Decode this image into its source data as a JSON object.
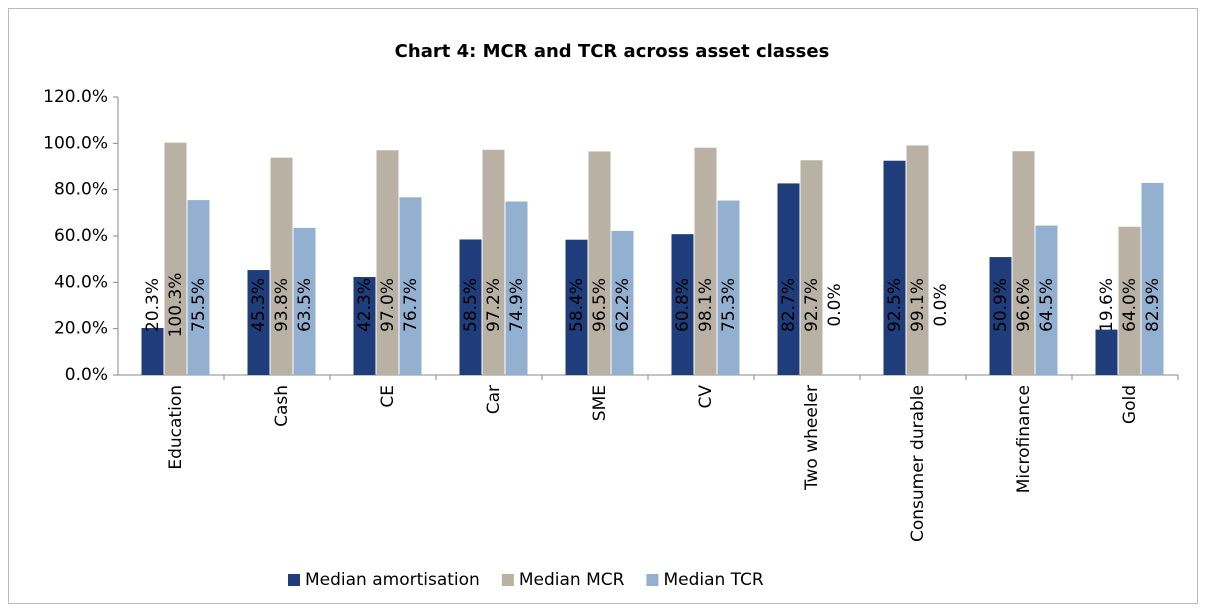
{
  "chart_data": {
    "type": "bar",
    "title": "Chart 4: MCR and TCR across asset classes",
    "categories": [
      "Education",
      "Cash",
      "CE",
      "Car",
      "SME",
      "CV",
      "Two wheeler",
      "Consumer durable",
      "Microfinance",
      "Gold"
    ],
    "series": [
      {
        "name": "Median amortisation",
        "color": "#1f3d7a",
        "values": [
          20.3,
          45.3,
          42.3,
          58.5,
          58.4,
          60.8,
          82.7,
          92.5,
          50.9,
          19.6
        ],
        "value_labels": [
          "20.3%",
          "45.3%",
          "42.3%",
          "58.5%",
          "58.4%",
          "60.8%",
          "82.7%",
          "92.5%",
          "50.9%",
          "19.6%"
        ]
      },
      {
        "name": "Median MCR",
        "color": "#b9b1a4",
        "values": [
          100.3,
          93.8,
          97.0,
          97.2,
          96.5,
          98.1,
          92.7,
          99.1,
          96.6,
          64.0
        ],
        "value_labels": [
          "100.3%",
          "93.8%",
          "97.0%",
          "97.2%",
          "96.5%",
          "98.1%",
          "92.7%",
          "99.1%",
          "96.6%",
          "64.0%"
        ]
      },
      {
        "name": "Median TCR",
        "color": "#93b0d1",
        "values": [
          75.5,
          63.5,
          76.7,
          74.9,
          62.2,
          75.3,
          0.0,
          0.0,
          64.5,
          82.9
        ],
        "value_labels": [
          "75.5%",
          "63.5%",
          "76.7%",
          "74.9%",
          "62.2%",
          "75.3%",
          "0.0%",
          "0.0%",
          "64.5%",
          "82.9%"
        ]
      }
    ],
    "ylim": [
      0,
      120
    ],
    "yticks": [
      {
        "value": 0,
        "label": "0.0%"
      },
      {
        "value": 20,
        "label": "20.0%"
      },
      {
        "value": 40,
        "label": "40.0%"
      },
      {
        "value": 60,
        "label": "60.0%"
      },
      {
        "value": 80,
        "label": "80.0%"
      },
      {
        "value": 100,
        "label": "100.0%"
      },
      {
        "value": 120,
        "label": "120.0%"
      }
    ],
    "legend": "bottom"
  }
}
